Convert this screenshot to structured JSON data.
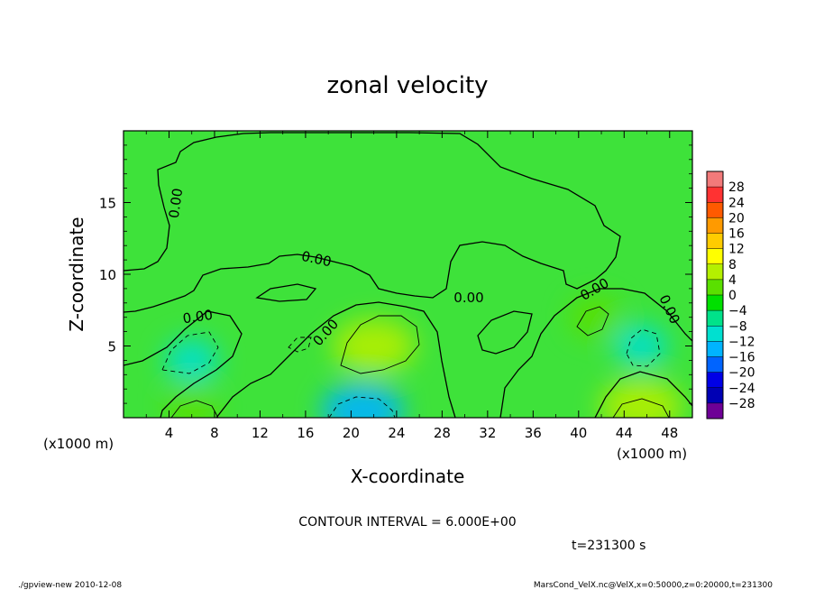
{
  "chart_data": {
    "type": "heatmap",
    "title": "zonal velocity",
    "xlabel": "X-coordinate",
    "ylabel": "Z-coordinate",
    "x_unit_label": "(x1000 m)",
    "y_unit_label": "(x1000 m)",
    "xlim": [
      0,
      50
    ],
    "ylim": [
      0,
      20
    ],
    "x_ticks": [
      "4",
      "8",
      "12",
      "16",
      "20",
      "24",
      "28",
      "32",
      "36",
      "40",
      "44",
      "48"
    ],
    "y_ticks": [
      "5",
      "10",
      "15"
    ],
    "x_tick_values": [
      4,
      8,
      12,
      16,
      20,
      24,
      28,
      32,
      36,
      40,
      44,
      48
    ],
    "y_tick_values": [
      5,
      10,
      15
    ],
    "colorbar": {
      "labels": [
        "28",
        "24",
        "20",
        "16",
        "12",
        "8",
        "4",
        "0",
        "−4",
        "−8",
        "−12",
        "−16",
        "−20",
        "−24",
        "−28"
      ],
      "colors": [
        "#f27a7a",
        "#ff3232",
        "#ff5a00",
        "#ff9a00",
        "#ffcc00",
        "#ffff00",
        "#b4f000",
        "#5ae000",
        "#00e000",
        "#00e28a",
        "#00e0d0",
        "#00b4ff",
        "#0064ff",
        "#0000e6",
        "#0000b4",
        "#6e0096"
      ]
    },
    "contour_labels": [
      "0.00",
      "0.00",
      "0.00",
      "0.00",
      "0.00",
      "0.00",
      "0.00"
    ],
    "contour_interval_text": "CONTOUR INTERVAL = 6.000E+00",
    "time_text": "t=231300 s",
    "features": [
      {
        "x": 22,
        "z": 5,
        "value": 8,
        "sign": "positive"
      },
      {
        "x": 6,
        "z": 4,
        "value": -6,
        "sign": "negative"
      },
      {
        "x": 45.5,
        "z": 5,
        "value": -6,
        "sign": "negative"
      },
      {
        "x": 41.5,
        "z": 7,
        "value": 4,
        "sign": "positive"
      },
      {
        "x": 21,
        "z": 0.5,
        "value": -10,
        "sign": "negative"
      },
      {
        "x": 6,
        "z": 0.8,
        "value": 6,
        "sign": "positive"
      },
      {
        "x": 45.5,
        "z": 0.8,
        "value": 8,
        "sign": "positive"
      }
    ]
  },
  "footer": {
    "left": "./gpview-new   2010-12-08",
    "right": "MarsCond_VelX.nc@VelX,x=0:50000,z=0:20000,t=231300"
  }
}
